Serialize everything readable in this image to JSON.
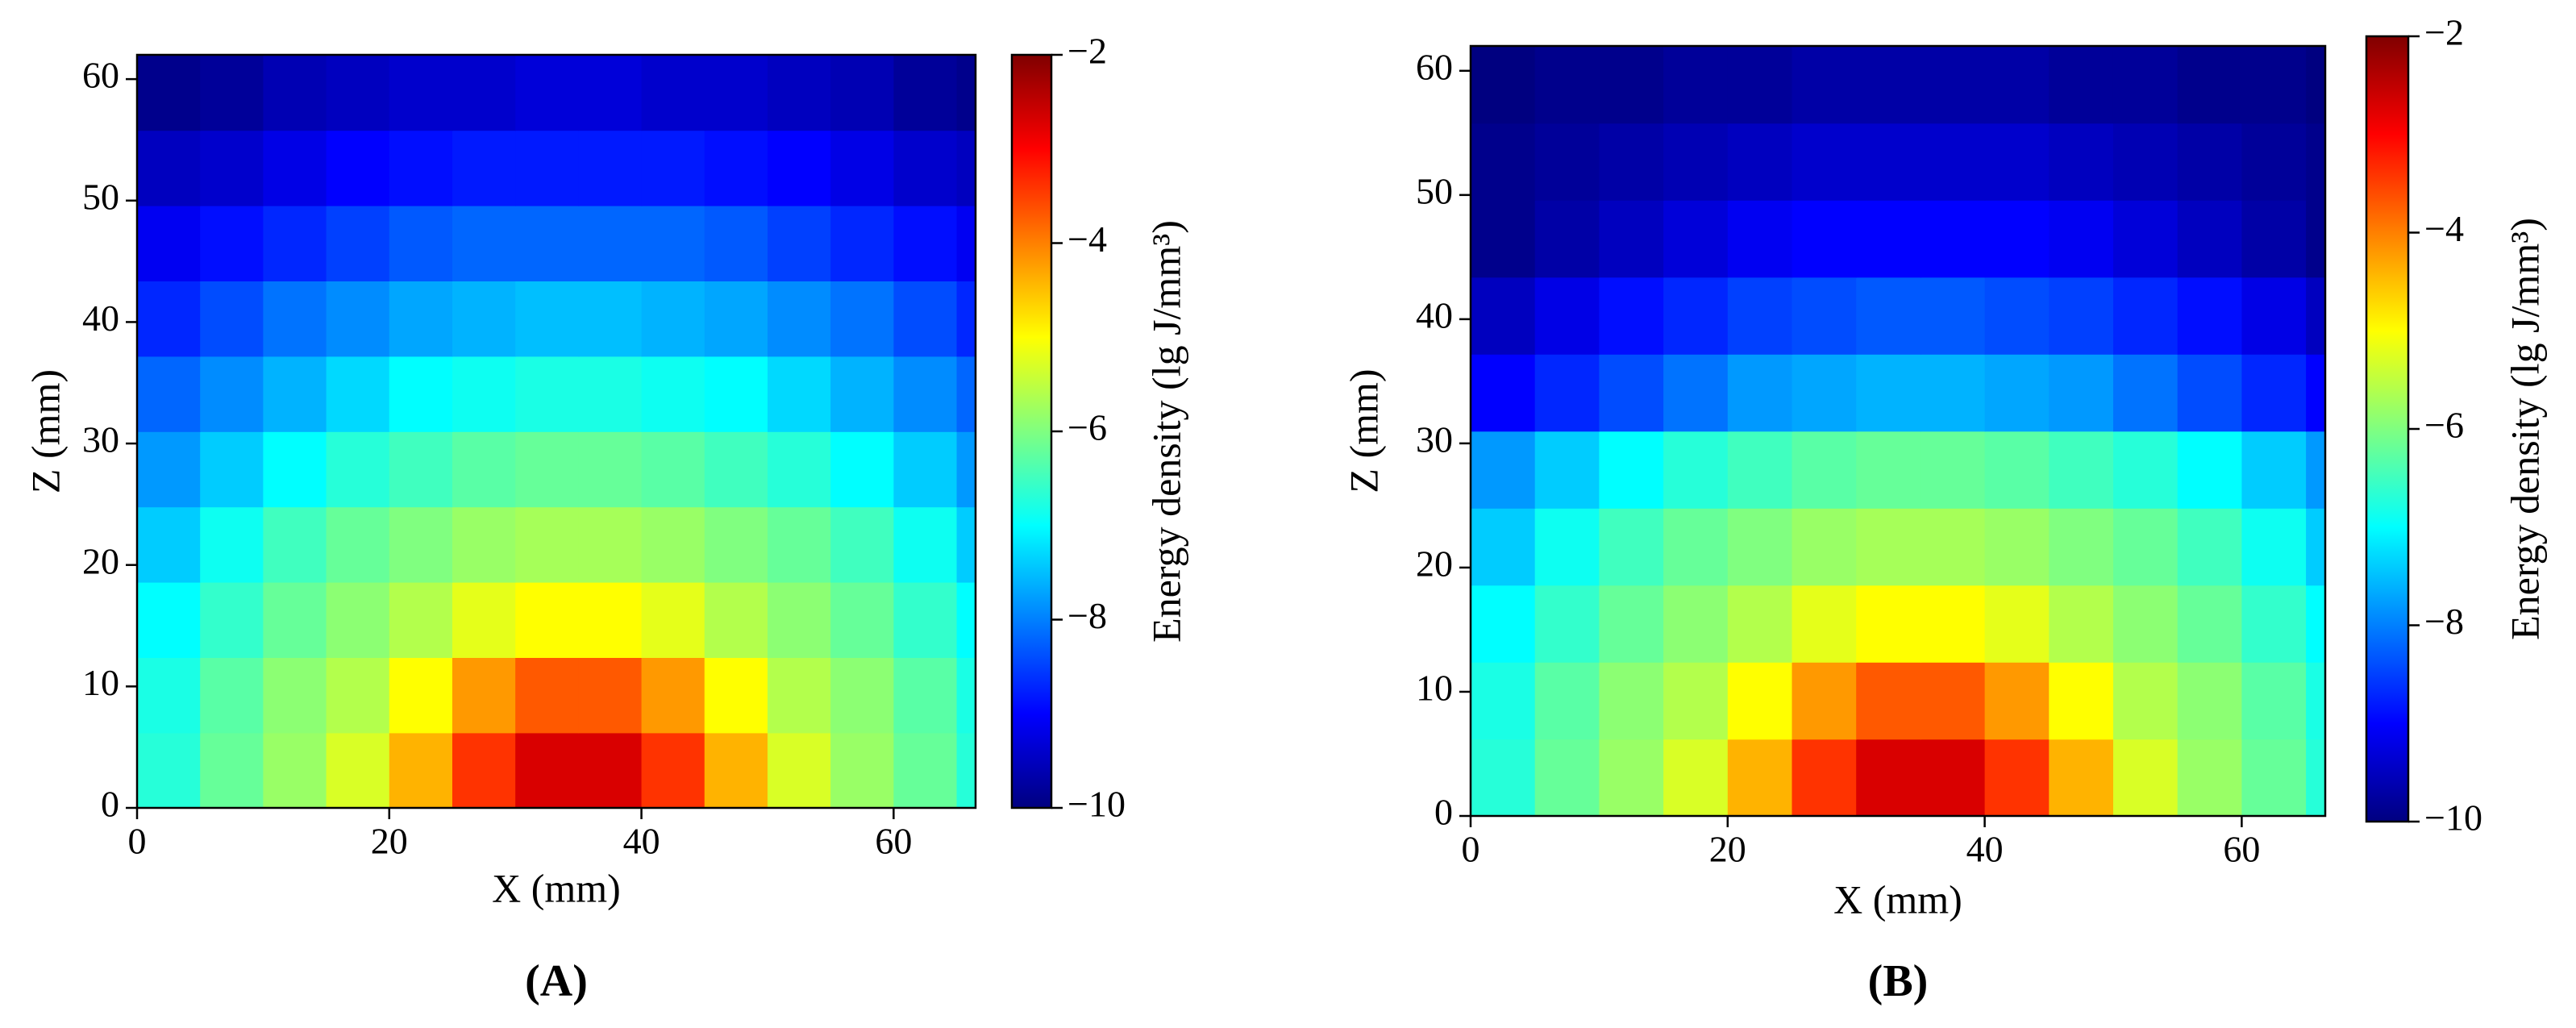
{
  "chart_data": [
    {
      "type": "heatmap",
      "panel_label": "(A)",
      "xlabel": "X (mm)",
      "ylabel": "Z (mm)",
      "colorbar_label": "Energy density (lg J/mm³)",
      "colormap": "jet",
      "xlim": [
        0,
        66.5
      ],
      "ylim": [
        0,
        62
      ],
      "xticks": [
        0,
        20,
        40,
        60
      ],
      "yticks": [
        0,
        10,
        20,
        30,
        40,
        50,
        60
      ],
      "clim": [
        -10,
        -2
      ],
      "cticks": [
        {
          "value": -2,
          "label": "−2"
        },
        {
          "value": -4,
          "label": "−4"
        },
        {
          "value": -6,
          "label": "−6"
        },
        {
          "value": -8,
          "label": "−8"
        },
        {
          "value": -10,
          "label": "−10"
        }
      ],
      "x": [
        2.5,
        7.5,
        12.5,
        17.5,
        22.5,
        27.5,
        32.5,
        37.5,
        42.5,
        47.5,
        52.5,
        57.5,
        62.5,
        67.5
      ],
      "y": [
        3.1,
        9.3,
        15.5,
        21.7,
        27.9,
        34.1,
        40.3,
        46.5,
        52.7,
        58.9
      ],
      "values": [
        [
          -6.7,
          -6.2,
          -5.8,
          -5.3,
          -4.4,
          -3.4,
          -2.7,
          -2.7,
          -3.4,
          -4.4,
          -5.3,
          -5.8,
          -6.2,
          -6.7
        ],
        [
          -6.8,
          -6.3,
          -5.9,
          -5.6,
          -5.0,
          -4.2,
          -3.7,
          -3.7,
          -4.2,
          -5.0,
          -5.6,
          -5.9,
          -6.3,
          -6.8
        ],
        [
          -7.0,
          -6.6,
          -6.2,
          -5.9,
          -5.6,
          -5.2,
          -5.0,
          -5.0,
          -5.2,
          -5.6,
          -5.9,
          -6.2,
          -6.6,
          -7.0
        ],
        [
          -7.4,
          -6.9,
          -6.5,
          -6.2,
          -6.0,
          -5.8,
          -5.7,
          -5.7,
          -5.8,
          -6.0,
          -6.2,
          -6.5,
          -6.9,
          -7.4
        ],
        [
          -7.8,
          -7.4,
          -7.0,
          -6.7,
          -6.5,
          -6.3,
          -6.2,
          -6.2,
          -6.3,
          -6.5,
          -6.7,
          -7.0,
          -7.4,
          -7.8
        ],
        [
          -8.2,
          -7.9,
          -7.6,
          -7.3,
          -7.0,
          -6.9,
          -6.8,
          -6.8,
          -6.9,
          -7.0,
          -7.3,
          -7.6,
          -7.9,
          -8.2
        ],
        [
          -8.7,
          -8.4,
          -8.1,
          -7.9,
          -7.7,
          -7.6,
          -7.5,
          -7.5,
          -7.6,
          -7.7,
          -7.9,
          -8.1,
          -8.4,
          -8.7
        ],
        [
          -9.1,
          -8.9,
          -8.7,
          -8.5,
          -8.3,
          -8.2,
          -8.2,
          -8.2,
          -8.2,
          -8.3,
          -8.5,
          -8.7,
          -8.9,
          -9.1
        ],
        [
          -9.5,
          -9.4,
          -9.2,
          -9.0,
          -8.9,
          -8.8,
          -8.8,
          -8.8,
          -8.8,
          -8.9,
          -9.0,
          -9.2,
          -9.4,
          -9.5
        ],
        [
          -9.9,
          -9.8,
          -9.6,
          -9.5,
          -9.4,
          -9.4,
          -9.3,
          -9.3,
          -9.4,
          -9.4,
          -9.5,
          -9.6,
          -9.8,
          -9.9
        ]
      ]
    },
    {
      "type": "heatmap",
      "panel_label": "(B)",
      "xlabel": "X (mm)",
      "ylabel": "Z (mm)",
      "colorbar_label": "Energy density (lg J/mm³)",
      "colormap": "jet",
      "xlim": [
        0,
        66.5
      ],
      "ylim": [
        0,
        62
      ],
      "xticks": [
        0,
        20,
        40,
        60
      ],
      "yticks": [
        0,
        10,
        20,
        30,
        40,
        50,
        60
      ],
      "clim": [
        -10,
        -2
      ],
      "cticks": [
        {
          "value": -2,
          "label": "−2"
        },
        {
          "value": -4,
          "label": "−4"
        },
        {
          "value": -6,
          "label": "−6"
        },
        {
          "value": -8,
          "label": "−8"
        },
        {
          "value": -10,
          "label": "−10"
        }
      ],
      "x": [
        2.5,
        7.5,
        12.5,
        17.5,
        22.5,
        27.5,
        32.5,
        37.5,
        42.5,
        47.5,
        52.5,
        57.5,
        62.5,
        67.5
      ],
      "y": [
        3.1,
        9.3,
        15.5,
        21.7,
        27.9,
        34.1,
        40.3,
        46.5,
        52.7,
        58.9
      ],
      "values": [
        [
          -6.7,
          -6.2,
          -5.8,
          -5.3,
          -4.4,
          -3.4,
          -2.7,
          -2.7,
          -3.4,
          -4.4,
          -5.3,
          -5.8,
          -6.2,
          -6.7
        ],
        [
          -6.8,
          -6.3,
          -5.9,
          -5.6,
          -5.0,
          -4.2,
          -3.7,
          -3.7,
          -4.2,
          -5.0,
          -5.6,
          -5.9,
          -6.3,
          -6.8
        ],
        [
          -7.0,
          -6.6,
          -6.2,
          -5.9,
          -5.6,
          -5.2,
          -5.0,
          -5.0,
          -5.2,
          -5.6,
          -5.9,
          -6.2,
          -6.6,
          -7.0
        ],
        [
          -7.4,
          -6.9,
          -6.5,
          -6.2,
          -6.0,
          -5.8,
          -5.7,
          -5.7,
          -5.8,
          -6.0,
          -6.2,
          -6.5,
          -6.9,
          -7.4
        ],
        [
          -7.8,
          -7.4,
          -7.0,
          -6.7,
          -6.5,
          -6.3,
          -6.2,
          -6.2,
          -6.3,
          -6.5,
          -6.7,
          -7.0,
          -7.4,
          -7.8
        ],
        [
          -9.0,
          -8.7,
          -8.4,
          -8.1,
          -7.8,
          -7.7,
          -7.6,
          -7.6,
          -7.7,
          -7.8,
          -8.1,
          -8.4,
          -8.7,
          -9.0
        ],
        [
          -9.5,
          -9.2,
          -8.9,
          -8.7,
          -8.5,
          -8.4,
          -8.3,
          -8.3,
          -8.4,
          -8.5,
          -8.7,
          -8.9,
          -9.2,
          -9.5
        ],
        [
          -9.9,
          -9.7,
          -9.5,
          -9.3,
          -9.1,
          -9.0,
          -9.0,
          -9.0,
          -9.0,
          -9.1,
          -9.3,
          -9.5,
          -9.7,
          -9.9
        ],
        [
          -9.9,
          -9.8,
          -9.7,
          -9.6,
          -9.5,
          -9.4,
          -9.4,
          -9.4,
          -9.4,
          -9.5,
          -9.6,
          -9.7,
          -9.8,
          -9.9
        ],
        [
          -10.0,
          -9.9,
          -9.9,
          -9.8,
          -9.8,
          -9.7,
          -9.7,
          -9.7,
          -9.7,
          -9.8,
          -9.8,
          -9.9,
          -9.9,
          -10.0
        ]
      ]
    }
  ]
}
